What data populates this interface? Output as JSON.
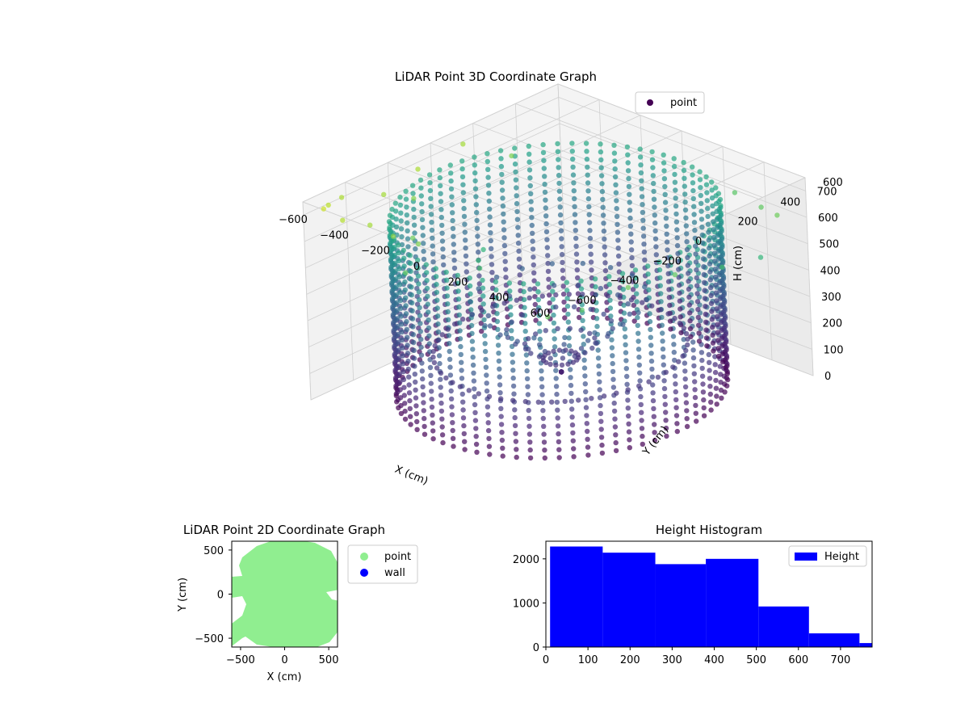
{
  "chart_data": [
    {
      "type": "scatter",
      "title": "LiDAR Point 3D Coordinate Graph",
      "xlabel": "X (cm)",
      "ylabel": "Y (cm)",
      "zlabel": "H (cm)",
      "xlim": [
        -600,
        600
      ],
      "ylim": [
        -600,
        600
      ],
      "zlim": [
        750,
        0
      ],
      "x_ticks": [
        -600,
        -400,
        -200,
        0,
        200,
        400,
        600
      ],
      "y_ticks": [
        -600,
        -400,
        -200,
        0,
        200,
        400,
        600
      ],
      "z_ticks": [
        0,
        100,
        200,
        300,
        400,
        500,
        600,
        700
      ],
      "z_inverted": true,
      "colormap": "viridis",
      "legend": {
        "location": "top-right",
        "entries": [
          {
            "label": "point",
            "color": "#440154"
          }
        ]
      },
      "shape": {
        "ring_radius": 560,
        "ring_top_h": 0,
        "ring_bottom_h": 660,
        "inner_ring_radius": 430,
        "inner_ring_h": 150
      }
    },
    {
      "type": "scatter",
      "title": "LiDAR Point 2D Coordinate Graph",
      "xlabel": "X (cm)",
      "ylabel": "Y (cm)",
      "xlim": [
        -600,
        600
      ],
      "ylim": [
        -600,
        600
      ],
      "x_ticks": [
        -500,
        0,
        500
      ],
      "y_ticks": [
        -500,
        0,
        500
      ],
      "legend": {
        "location": "outside-right",
        "entries": [
          {
            "label": "point",
            "color": "#90ee90"
          },
          {
            "label": "wall",
            "color": "#0000ff"
          }
        ]
      }
    },
    {
      "type": "bar",
      "title": "Height Histogram",
      "xlabel": "",
      "ylabel": "",
      "bins": [
        {
          "x0": 10,
          "x1": 135,
          "count": 2280
        },
        {
          "x0": 135,
          "x1": 260,
          "count": 2140
        },
        {
          "x0": 260,
          "x1": 380,
          "count": 1880
        },
        {
          "x0": 380,
          "x1": 505,
          "count": 2000
        },
        {
          "x0": 505,
          "x1": 625,
          "count": 920
        },
        {
          "x0": 625,
          "x1": 745,
          "count": 310
        },
        {
          "x0": 745,
          "x1": 775,
          "count": 90
        }
      ],
      "xlim": [
        0,
        775
      ],
      "ylim": [
        0,
        2400
      ],
      "x_ticks": [
        0,
        100,
        200,
        300,
        400,
        500,
        600,
        700
      ],
      "y_ticks": [
        0,
        1000,
        2000
      ],
      "color": "#0000ff",
      "legend": {
        "location": "top-right",
        "entries": [
          {
            "label": "Height",
            "color": "#0000ff"
          }
        ]
      }
    }
  ]
}
